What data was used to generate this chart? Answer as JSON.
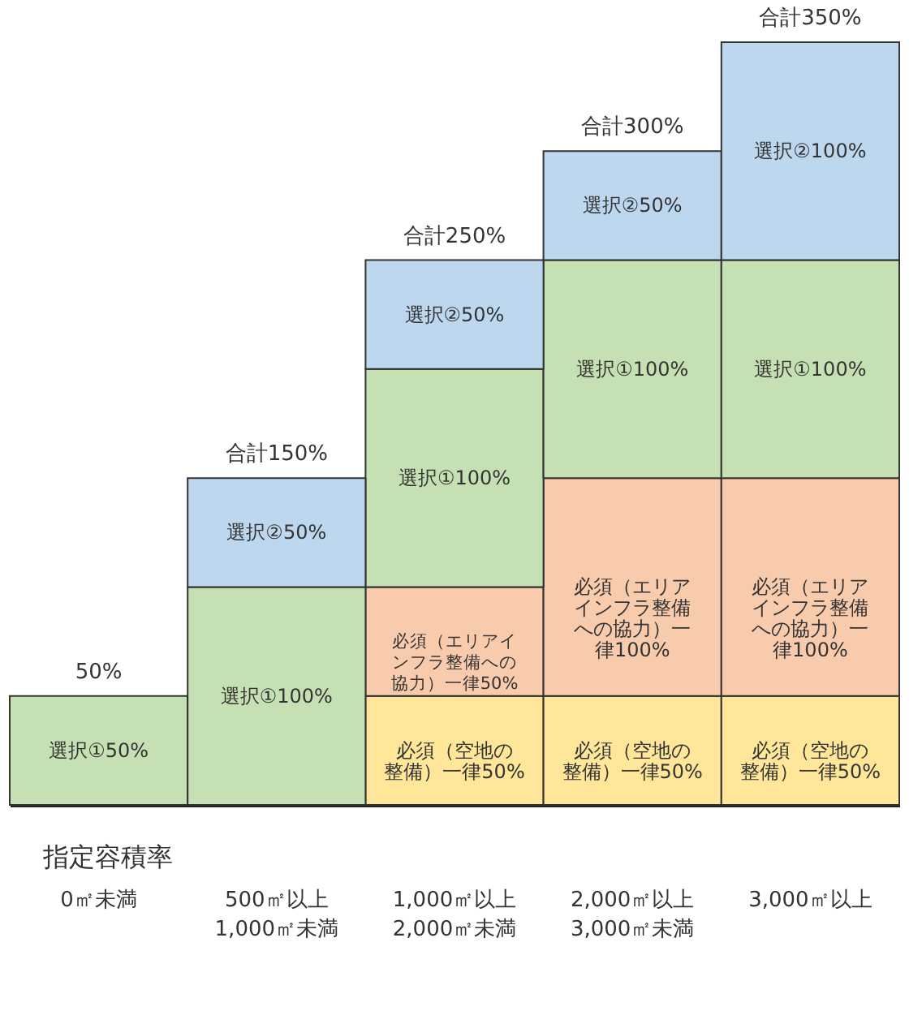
{
  "chart_data": {
    "type": "bar",
    "stacked": true,
    "xlabel": "指定容積率",
    "categories": [
      "0㎡未満",
      "500㎡以上\n1,000㎡未満",
      "1,000㎡以上\n2,000㎡未満",
      "2,000㎡以上\n3,000㎡未満",
      "3,000㎡以上"
    ],
    "ylim": [
      0,
      350
    ],
    "tick_labels": "x",
    "grid": false,
    "series": [
      {
        "color": "#ffe699",
        "values": [
          null,
          null,
          50,
          50,
          50
        ],
        "value_labels": [
          null,
          null,
          "必須（空地の整備）一律50%",
          "必須（空地の整備）一律50%",
          "必須（空地の整備）一律50%"
        ]
      },
      {
        "color": "#f8cbad",
        "values": [
          null,
          null,
          50,
          100,
          100
        ],
        "value_labels": [
          null,
          null,
          "必須（エリアインフラ整備への協力）一律50%",
          "必須（エリアインフラ整備への協力）一律100%",
          "必須（エリアインフラ整備への協力）一律100%"
        ]
      },
      {
        "color": "#c5e0b3",
        "values": [
          50,
          100,
          100,
          100,
          100
        ],
        "value_labels": [
          "選択①50%",
          "選択①100%",
          "選択①100%",
          "選択①100%",
          "選択①100%"
        ]
      },
      {
        "color": "#bdd7ee",
        "values": [
          null,
          50,
          50,
          50,
          100
        ],
        "value_labels": [
          null,
          "選択②50%",
          "選択②50%",
          "選択②50%",
          "選択②100%"
        ]
      }
    ],
    "totals": [
      "50%",
      "合計150%",
      "合計250%",
      "合計300%",
      "合計350%"
    ]
  }
}
